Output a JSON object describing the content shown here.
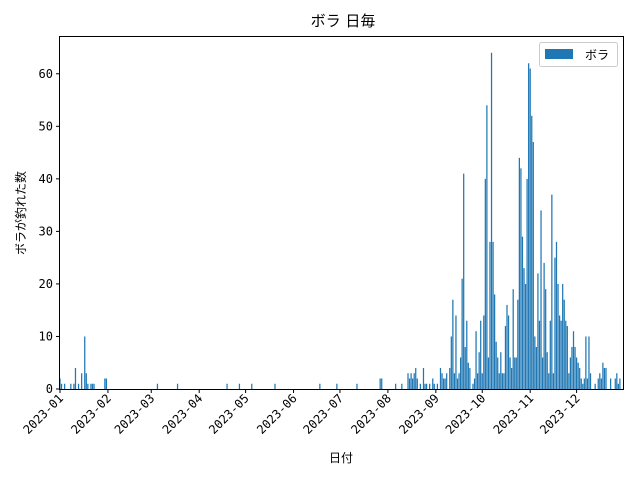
{
  "chart_data": {
    "type": "bar",
    "title": "ボラ 日毎",
    "xlabel": "日付",
    "ylabel": "ボラが釣れた数",
    "ylim": [
      0,
      67
    ],
    "xlim": [
      "2023-01-01",
      "2023-12-31"
    ],
    "yticks": [
      0,
      10,
      20,
      30,
      40,
      50,
      60
    ],
    "xticks": [
      "2023-01",
      "2023-02",
      "2023-03",
      "2023-04",
      "2023-05",
      "2023-06",
      "2023-07",
      "2023-08",
      "2023-09",
      "2023-10",
      "2023-11",
      "2023-12"
    ],
    "grid": false,
    "legend": {
      "position": "top-right",
      "entries": [
        "ボラ"
      ]
    },
    "color": "#1f77b4",
    "series": [
      {
        "name": "ボラ",
        "points": [
          [
            "2023-01-01",
            2
          ],
          [
            "2023-01-02",
            1
          ],
          [
            "2023-01-04",
            1
          ],
          [
            "2023-01-08",
            1
          ],
          [
            "2023-01-10",
            1
          ],
          [
            "2023-01-11",
            4
          ],
          [
            "2023-01-13",
            1
          ],
          [
            "2023-01-15",
            3
          ],
          [
            "2023-01-17",
            10
          ],
          [
            "2023-01-18",
            3
          ],
          [
            "2023-01-19",
            1
          ],
          [
            "2023-01-21",
            1
          ],
          [
            "2023-01-22",
            1
          ],
          [
            "2023-01-23",
            1
          ],
          [
            "2023-01-30",
            2
          ],
          [
            "2023-01-31",
            2
          ],
          [
            "2023-03-05",
            1
          ],
          [
            "2023-03-18",
            1
          ],
          [
            "2023-04-19",
            1
          ],
          [
            "2023-04-27",
            1
          ],
          [
            "2023-05-05",
            1
          ],
          [
            "2023-05-20",
            1
          ],
          [
            "2023-06-18",
            1
          ],
          [
            "2023-06-29",
            1
          ],
          [
            "2023-07-12",
            1
          ],
          [
            "2023-07-27",
            2
          ],
          [
            "2023-07-28",
            2
          ],
          [
            "2023-08-06",
            1
          ],
          [
            "2023-08-10",
            1
          ],
          [
            "2023-08-14",
            3
          ],
          [
            "2023-08-15",
            2
          ],
          [
            "2023-08-16",
            3
          ],
          [
            "2023-08-17",
            2
          ],
          [
            "2023-08-18",
            3
          ],
          [
            "2023-08-19",
            4
          ],
          [
            "2023-08-20",
            2
          ],
          [
            "2023-08-22",
            1
          ],
          [
            "2023-08-24",
            4
          ],
          [
            "2023-08-25",
            1
          ],
          [
            "2023-08-26",
            1
          ],
          [
            "2023-08-28",
            1
          ],
          [
            "2023-08-30",
            2
          ],
          [
            "2023-08-31",
            1
          ],
          [
            "2023-09-02",
            1
          ],
          [
            "2023-09-04",
            4
          ],
          [
            "2023-09-05",
            3
          ],
          [
            "2023-09-06",
            2
          ],
          [
            "2023-09-07",
            2
          ],
          [
            "2023-09-08",
            3
          ],
          [
            "2023-09-10",
            4
          ],
          [
            "2023-09-11",
            10
          ],
          [
            "2023-09-12",
            17
          ],
          [
            "2023-09-13",
            3
          ],
          [
            "2023-09-14",
            14
          ],
          [
            "2023-09-15",
            2
          ],
          [
            "2023-09-16",
            3
          ],
          [
            "2023-09-17",
            6
          ],
          [
            "2023-09-18",
            21
          ],
          [
            "2023-09-19",
            41
          ],
          [
            "2023-09-20",
            8
          ],
          [
            "2023-09-21",
            13
          ],
          [
            "2023-09-22",
            5
          ],
          [
            "2023-09-23",
            4
          ],
          [
            "2023-09-25",
            1
          ],
          [
            "2023-09-26",
            2
          ],
          [
            "2023-09-27",
            11
          ],
          [
            "2023-09-28",
            3
          ],
          [
            "2023-09-29",
            7
          ],
          [
            "2023-09-30",
            13
          ],
          [
            "2023-10-01",
            3
          ],
          [
            "2023-10-02",
            14
          ],
          [
            "2023-10-03",
            40
          ],
          [
            "2023-10-04",
            54
          ],
          [
            "2023-10-05",
            6
          ],
          [
            "2023-10-06",
            28
          ],
          [
            "2023-10-07",
            64
          ],
          [
            "2023-10-08",
            28
          ],
          [
            "2023-10-09",
            18
          ],
          [
            "2023-10-10",
            9
          ],
          [
            "2023-10-11",
            6
          ],
          [
            "2023-10-12",
            3
          ],
          [
            "2023-10-13",
            7
          ],
          [
            "2023-10-14",
            3
          ],
          [
            "2023-10-15",
            3
          ],
          [
            "2023-10-16",
            12
          ],
          [
            "2023-10-17",
            16
          ],
          [
            "2023-10-18",
            14
          ],
          [
            "2023-10-19",
            6
          ],
          [
            "2023-10-20",
            4
          ],
          [
            "2023-10-21",
            19
          ],
          [
            "2023-10-22",
            6
          ],
          [
            "2023-10-23",
            6
          ],
          [
            "2023-10-24",
            17
          ],
          [
            "2023-10-25",
            44
          ],
          [
            "2023-10-26",
            42
          ],
          [
            "2023-10-27",
            29
          ],
          [
            "2023-10-28",
            23
          ],
          [
            "2023-10-29",
            20
          ],
          [
            "2023-10-30",
            40
          ],
          [
            "2023-10-31",
            62
          ],
          [
            "2023-11-01",
            61
          ],
          [
            "2023-11-02",
            52
          ],
          [
            "2023-11-03",
            47
          ],
          [
            "2023-11-04",
            10
          ],
          [
            "2023-11-05",
            8
          ],
          [
            "2023-11-06",
            22
          ],
          [
            "2023-11-07",
            13
          ],
          [
            "2023-11-08",
            34
          ],
          [
            "2023-11-09",
            6
          ],
          [
            "2023-11-10",
            24
          ],
          [
            "2023-11-11",
            19
          ],
          [
            "2023-11-12",
            7
          ],
          [
            "2023-11-13",
            3
          ],
          [
            "2023-11-14",
            13
          ],
          [
            "2023-11-15",
            37
          ],
          [
            "2023-11-16",
            3
          ],
          [
            "2023-11-17",
            25
          ],
          [
            "2023-11-18",
            28
          ],
          [
            "2023-11-19",
            20
          ],
          [
            "2023-11-20",
            14
          ],
          [
            "2023-11-21",
            13
          ],
          [
            "2023-11-22",
            20
          ],
          [
            "2023-11-23",
            17
          ],
          [
            "2023-11-24",
            13
          ],
          [
            "2023-11-25",
            12
          ],
          [
            "2023-11-26",
            3
          ],
          [
            "2023-11-27",
            6
          ],
          [
            "2023-11-28",
            8
          ],
          [
            "2023-11-29",
            11
          ],
          [
            "2023-11-30",
            8
          ],
          [
            "2023-12-01",
            6
          ],
          [
            "2023-12-02",
            5
          ],
          [
            "2023-12-03",
            4
          ],
          [
            "2023-12-04",
            2
          ],
          [
            "2023-12-05",
            1
          ],
          [
            "2023-12-06",
            2
          ],
          [
            "2023-12-07",
            10
          ],
          [
            "2023-12-08",
            2
          ],
          [
            "2023-12-09",
            10
          ],
          [
            "2023-12-10",
            3
          ],
          [
            "2023-12-13",
            1
          ],
          [
            "2023-12-15",
            2
          ],
          [
            "2023-12-16",
            3
          ],
          [
            "2023-12-17",
            2
          ],
          [
            "2023-12-18",
            5
          ],
          [
            "2023-12-19",
            4
          ],
          [
            "2023-12-20",
            4
          ],
          [
            "2023-12-23",
            2
          ],
          [
            "2023-12-26",
            2
          ],
          [
            "2023-12-27",
            3
          ],
          [
            "2023-12-28",
            1
          ],
          [
            "2023-12-29",
            2
          ]
        ]
      }
    ]
  }
}
